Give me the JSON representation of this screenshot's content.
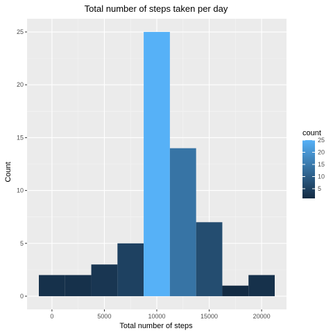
{
  "chart_data": {
    "type": "bar",
    "title": "Total number of steps taken per day",
    "xlabel": "Total number of steps",
    "ylabel": "Count",
    "bins": [
      {
        "x0": -1250,
        "x1": 1250,
        "count": 2
      },
      {
        "x0": 1250,
        "x1": 3750,
        "count": 2
      },
      {
        "x0": 3750,
        "x1": 6250,
        "count": 3
      },
      {
        "x0": 6250,
        "x1": 8750,
        "count": 5
      },
      {
        "x0": 8750,
        "x1": 11250,
        "count": 25
      },
      {
        "x0": 11250,
        "x1": 13750,
        "count": 14
      },
      {
        "x0": 13750,
        "x1": 16250,
        "count": 7
      },
      {
        "x0": 16250,
        "x1": 18750,
        "count": 1
      },
      {
        "x0": 18750,
        "x1": 21250,
        "count": 2
      }
    ],
    "xlim": [
      -2375,
      22375
    ],
    "ylim": [
      -1.25,
      26.25
    ],
    "xticks": [
      0,
      5000,
      10000,
      15000,
      20000
    ],
    "xtick_labels": [
      "0",
      "5000",
      "10000",
      "15000",
      "20000"
    ],
    "yticks": [
      0,
      5,
      10,
      15,
      20,
      25
    ],
    "ytick_labels": [
      "0",
      "5",
      "10",
      "15",
      "20",
      "25"
    ],
    "grid": true,
    "legend": {
      "title": "count",
      "placement": "right",
      "ticks": [
        5,
        10,
        15,
        20,
        25
      ],
      "tick_labels": [
        "5",
        "10",
        "15",
        "20",
        "25"
      ],
      "range": [
        1,
        25
      ],
      "color_low": "#132B43",
      "color_high": "#56B1F7"
    },
    "colors": {
      "panel_bg": "#ebebeb",
      "grid_major": "#ffffff"
    }
  }
}
